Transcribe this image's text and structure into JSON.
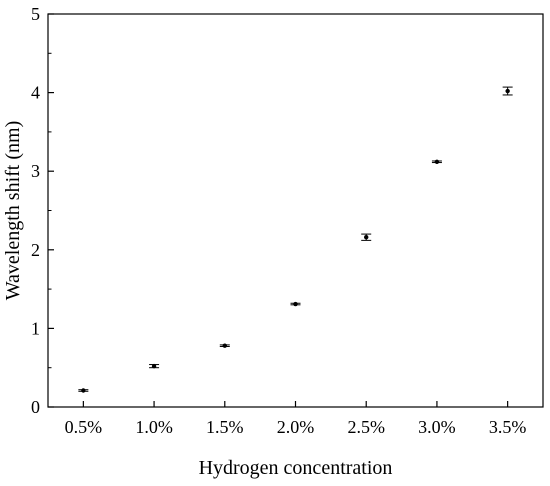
{
  "chart_data": {
    "type": "scatter",
    "xlabel": "Hydrogen concentration",
    "ylabel": "Wavelength shift (nm)",
    "categories": [
      "0.5%",
      "1.0%",
      "1.5%",
      "2.0%",
      "2.5%",
      "3.0%",
      "3.5%"
    ],
    "x": [
      0.5,
      1.0,
      1.5,
      2.0,
      2.5,
      3.0,
      3.5
    ],
    "values": [
      0.21,
      0.52,
      0.78,
      1.31,
      2.16,
      3.12,
      4.02
    ],
    "errors": [
      0.01,
      0.02,
      0.01,
      0.01,
      0.04,
      0.01,
      0.05
    ],
    "xlim": [
      0.25,
      3.75
    ],
    "ylim": [
      0,
      5
    ],
    "yticks": [
      0,
      1,
      2,
      3,
      4,
      5
    ],
    "ytick_labels": [
      "0",
      "1",
      "2",
      "3",
      "4",
      "5"
    ],
    "grid": false,
    "marker_color": "#000000"
  }
}
